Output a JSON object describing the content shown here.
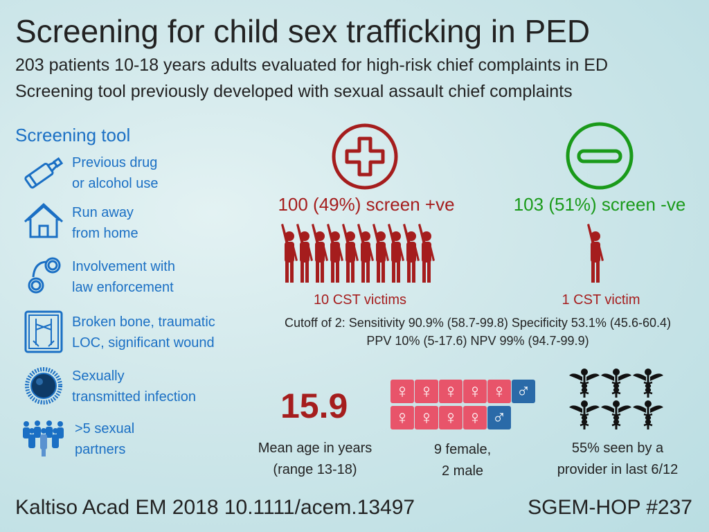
{
  "header": {
    "title": "Screening for child sex trafficking in PED",
    "subtitle1": "203 patients 10-18 years adults evaluated for high-risk chief complaints in ED",
    "subtitle2": "Screening tool previously developed with sexual assault chief complaints"
  },
  "screening_tool": {
    "title": "Screening tool",
    "items": [
      {
        "icon": "bottle-icon",
        "line1": "Previous drug",
        "line2": "or alcohol use"
      },
      {
        "icon": "house-icon",
        "line1": "Run away",
        "line2": "from home"
      },
      {
        "icon": "handcuffs-icon",
        "line1": "Involvement with",
        "line2": "law enforcement"
      },
      {
        "icon": "xray-icon",
        "line1": "Broken bone, traumatic",
        "line2": "LOC, significant wound"
      },
      {
        "icon": "germ-icon",
        "line1": "Sexually",
        "line2": "transmitted infection"
      },
      {
        "icon": "crowd-icon",
        "line1": ">5 sexual",
        "line2": "partners"
      }
    ]
  },
  "results": {
    "positive": {
      "label": "100 (49%) screen +ve",
      "victims": "10 CST victims",
      "victim_count": 10,
      "color": "#a51d1d"
    },
    "negative": {
      "label": "103 (51%) screen -ve",
      "victims": "1 CST victim",
      "victim_count": 1,
      "color": "#1a9a1a"
    },
    "stats_line1": "Cutoff of 2: Sensitivity 90.9% (58.7-99.8) Specificity 53.1% (45.6-60.4)",
    "stats_line2": "PPV 10% (5-17.6) NPV 99% (94.7-99.9)"
  },
  "demographics": {
    "age_value": "15.9",
    "age_line1": "Mean age in years",
    "age_line2": "(range 13-18)",
    "female_count": 9,
    "male_count": 2,
    "sex_line1": "9 female,",
    "sex_line2": "2 male",
    "provider_count": 6,
    "provider_line1": "55% seen by a",
    "provider_line2": "provider in last 6/12"
  },
  "footer": {
    "citation": "Kaltiso Acad EM 2018 10.1111/acem.13497",
    "episode": "SGEM-HOP #237"
  },
  "colors": {
    "tool_blue": "#1a6fc4",
    "female_pink": "#e8546a",
    "male_blue": "#2a6aa8"
  }
}
